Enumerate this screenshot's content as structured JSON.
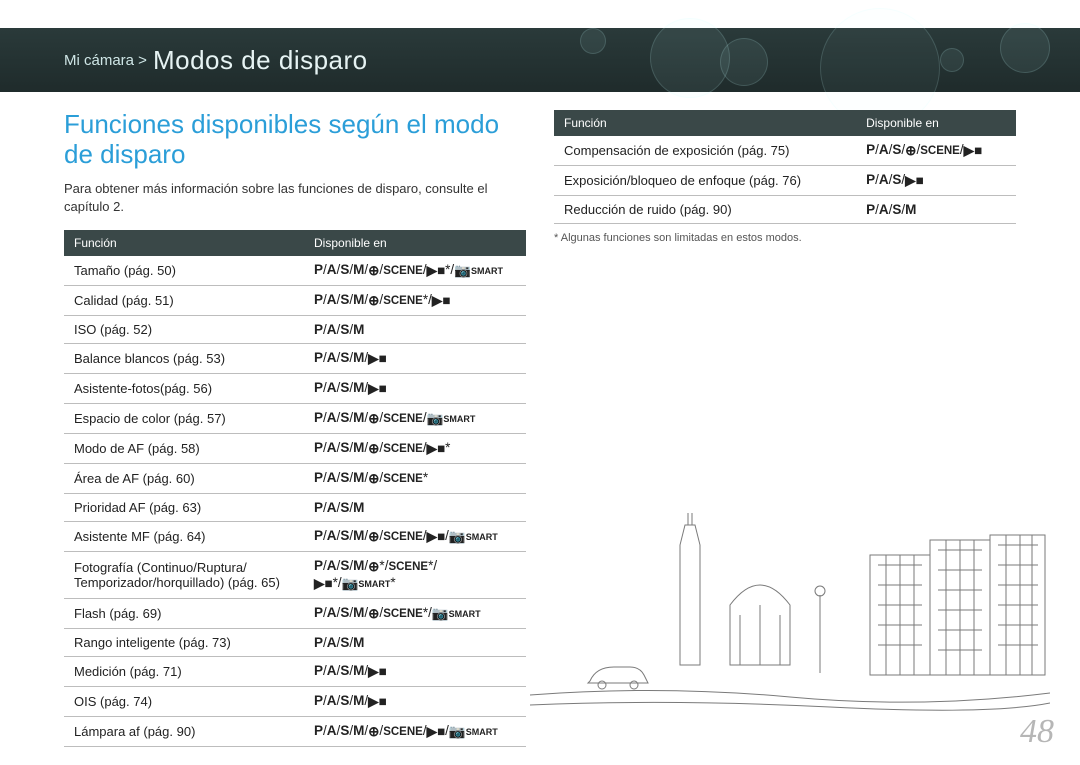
{
  "header": {
    "breadcrumb": "Mi cámara >",
    "title": "Modos de disparo"
  },
  "section_title": "Funciones disponibles según el modo de disparo",
  "intro": "Para obtener más información sobre las funciones de disparo, consulte el capítulo 2.",
  "table_headers": {
    "func": "Función",
    "avail": "Disponible en"
  },
  "left_rows": [
    {
      "f": "Tamaño (pág. 50)",
      "m": "P/A/S/M/⊕/SCENE/▶■*/📷SMART"
    },
    {
      "f": "Calidad (pág. 51)",
      "m": "P/A/S/M/⊕/SCENE*/▶■"
    },
    {
      "f": "ISO (pág. 52)",
      "m": "P/A/S/M"
    },
    {
      "f": "Balance blancos (pág. 53)",
      "m": "P/A/S/M/▶■"
    },
    {
      "f": "Asistente-fotos(pág. 56)",
      "m": "P/A/S/M/▶■"
    },
    {
      "f": "Espacio de color (pág. 57)",
      "m": "P/A/S/M/⊕/SCENE/📷SMART"
    },
    {
      "f": "Modo de AF (pág. 58)",
      "m": "P/A/S/M/⊕/SCENE/▶■*"
    },
    {
      "f": "Área de AF (pág. 60)",
      "m": "P/A/S/M/⊕/SCENE*"
    },
    {
      "f": "Prioridad AF (pág. 63)",
      "m": "P/A/S/M"
    },
    {
      "f": "Asistente MF (pág. 64)",
      "m": "P/A/S/M/⊕/SCENE/▶■/📷SMART"
    },
    {
      "f": "Fotografía (Continuo/Ruptura/\nTemporizador/horquillado) (pág. 65)",
      "m": "P/A/S/M/⊕*/SCENE*/\n▶■*/📷SMART*"
    },
    {
      "f": "Flash (pág. 69)",
      "m": "P/A/S/M/⊕/SCENE*/📷SMART"
    },
    {
      "f": "Rango inteligente (pág. 73)",
      "m": "P/A/S/M"
    },
    {
      "f": "Medición (pág. 71)",
      "m": "P/A/S/M/▶■"
    },
    {
      "f": "OIS (pág. 74)",
      "m": "P/A/S/M/▶■"
    },
    {
      "f": "Lámpara af (pág. 90)",
      "m": "P/A/S/M/⊕/SCENE/▶■/📷SMART"
    }
  ],
  "right_rows": [
    {
      "f": "Compensación de exposición (pág. 75)",
      "m": "P/A/S/⊕/SCENE/▶■"
    },
    {
      "f": "Exposición/bloqueo de enfoque (pág. 76)",
      "m": "P/A/S/▶■"
    },
    {
      "f": "Reducción  de ruido (pág. 90)",
      "m": "P/A/S/M"
    }
  ],
  "footnote": "* Algunas funciones son limitadas en estos modos.",
  "page_number": "48",
  "style": {
    "header_bg_top": "#2a3a3a",
    "header_bg_bottom": "#1f2b2b",
    "accent_color": "#2b9ed8",
    "th_bg": "#3a4848",
    "row_border": "#bdbdbd",
    "page_num_color": "#b6b6b6",
    "body_font_size": 13,
    "title_font_size": 26
  }
}
